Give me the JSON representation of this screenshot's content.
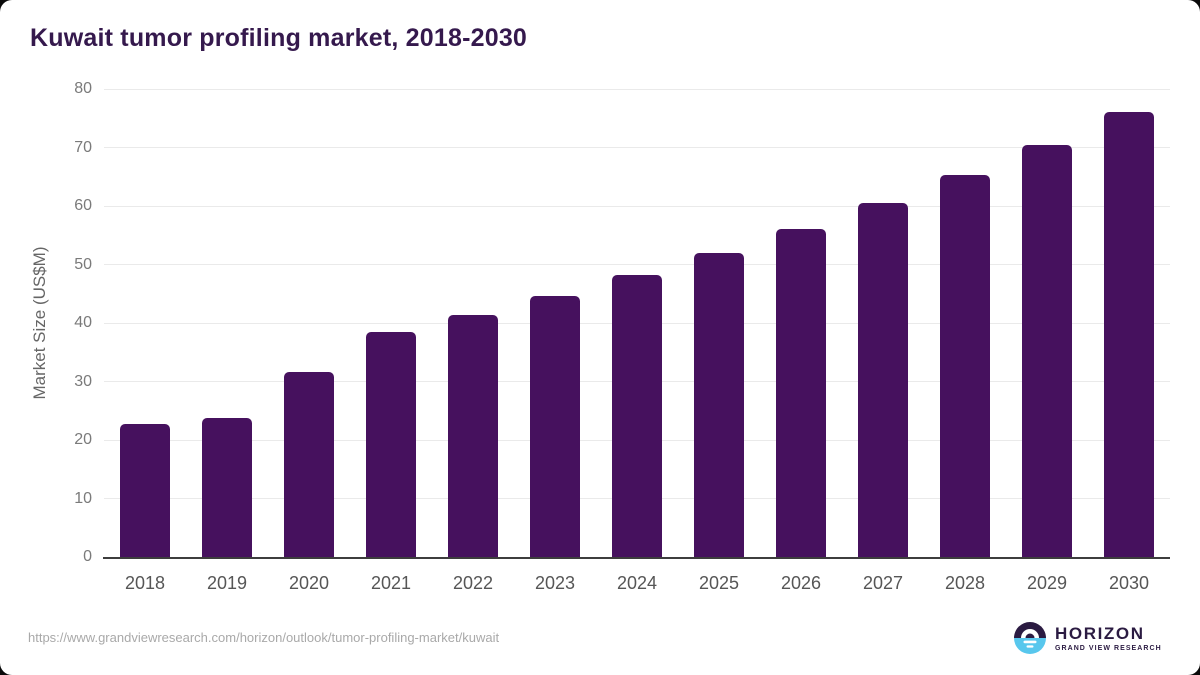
{
  "page": {
    "title": "Kuwait tumor profiling market, 2018-2030"
  },
  "chart_data": {
    "type": "bar",
    "title": "Kuwait tumor profiling market, 2018-2030",
    "categories": [
      "2018",
      "2019",
      "2020",
      "2021",
      "2022",
      "2023",
      "2024",
      "2025",
      "2026",
      "2027",
      "2028",
      "2029",
      "2030"
    ],
    "values": [
      22.7,
      23.8,
      31.6,
      38.4,
      41.3,
      44.7,
      48.2,
      52.0,
      56.1,
      60.6,
      65.3,
      70.5,
      76.1
    ],
    "xlabel": "",
    "ylabel": "Market Size (US$M)",
    "ylim": [
      0,
      80
    ],
    "ytick_step": 10,
    "grid": "horizontal-only",
    "legend": "none",
    "bar_color": "#46115e"
  },
  "footer": {
    "source_url": "https://www.grandviewresearch.com/horizon/outlook/tumor-profiling-market/kuwait",
    "logo": {
      "name": "HORIZON",
      "subtitle": "GRAND VIEW RESEARCH"
    }
  },
  "colors": {
    "bar": "#46115e",
    "title_text": "#35194d",
    "axis_line": "#3d3d3d",
    "gridline": "#eaeaea",
    "tick_text": "#7a7a7a",
    "logo_purple": "#2b1b42",
    "logo_blue": "#58c7ed"
  }
}
